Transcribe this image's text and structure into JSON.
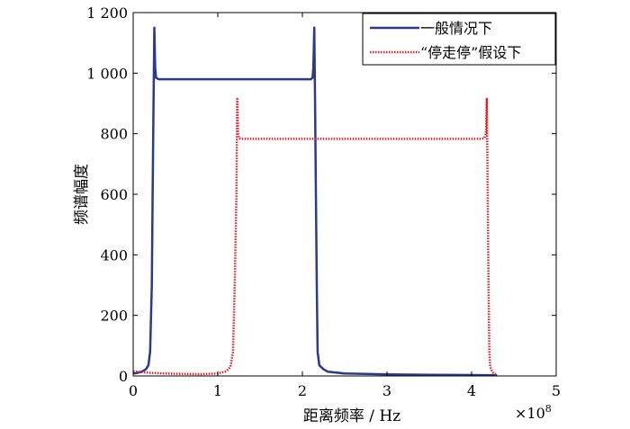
{
  "chart_data": {
    "type": "line",
    "title": "",
    "xlabel": "距离频率 / Hz",
    "ylabel": "频谱幅度",
    "x_multiplier_label": "×10",
    "x_multiplier_exp": "8",
    "xlim": [
      0,
      5
    ],
    "ylim": [
      0,
      1200
    ],
    "xticks": [
      0,
      1,
      2,
      3,
      4,
      5
    ],
    "xtick_labels": [
      "0",
      "1",
      "2",
      "3",
      "4",
      "5"
    ],
    "yticks": [
      0,
      200,
      400,
      600,
      800,
      1000,
      1200
    ],
    "ytick_labels": [
      "0",
      "200",
      "400",
      "600",
      "800",
      "1 000",
      "1 200"
    ],
    "grid": false,
    "legend_position": "top-right",
    "series": [
      {
        "name": "一般情况下",
        "color": "#2b3990",
        "style": "solid",
        "x": [
          0,
          0.05,
          0.1,
          0.15,
          0.18,
          0.2,
          0.22,
          0.23,
          0.24,
          0.25,
          0.26,
          0.27,
          0.3,
          0.35,
          0.5,
          1.0,
          1.5,
          2.0,
          2.05,
          2.08,
          2.1,
          2.12,
          2.13,
          2.14,
          2.15,
          2.16,
          2.17,
          2.18,
          2.2,
          2.25,
          2.3,
          2.5,
          3.0,
          3.5,
          4.0,
          4.3
        ],
        "y": [
          8,
          10,
          14,
          22,
          35,
          80,
          300,
          600,
          900,
          1150,
          1020,
          985,
          980,
          980,
          980,
          980,
          980,
          980,
          980,
          980,
          980,
          985,
          1020,
          1150,
          900,
          600,
          300,
          80,
          35,
          22,
          14,
          8,
          5,
          4,
          3,
          2
        ]
      },
      {
        "name": "“停走停”假设下",
        "color": "#ed1c24",
        "style": "dotted",
        "x": [
          0,
          0.2,
          0.5,
          0.8,
          1.0,
          1.1,
          1.15,
          1.18,
          1.2,
          1.22,
          1.23,
          1.24,
          1.25,
          1.27,
          1.3,
          1.5,
          2.0,
          2.5,
          3.0,
          3.5,
          4.0,
          4.1,
          4.15,
          4.17,
          4.18,
          4.19,
          4.2,
          4.21,
          4.22,
          4.24,
          4.26,
          4.3
        ],
        "y": [
          15,
          10,
          7,
          6,
          8,
          15,
          30,
          80,
          300,
          600,
          915,
          800,
          785,
          783,
          783,
          783,
          783,
          783,
          783,
          783,
          783,
          783,
          785,
          800,
          915,
          600,
          300,
          80,
          30,
          15,
          8,
          5
        ]
      }
    ]
  }
}
